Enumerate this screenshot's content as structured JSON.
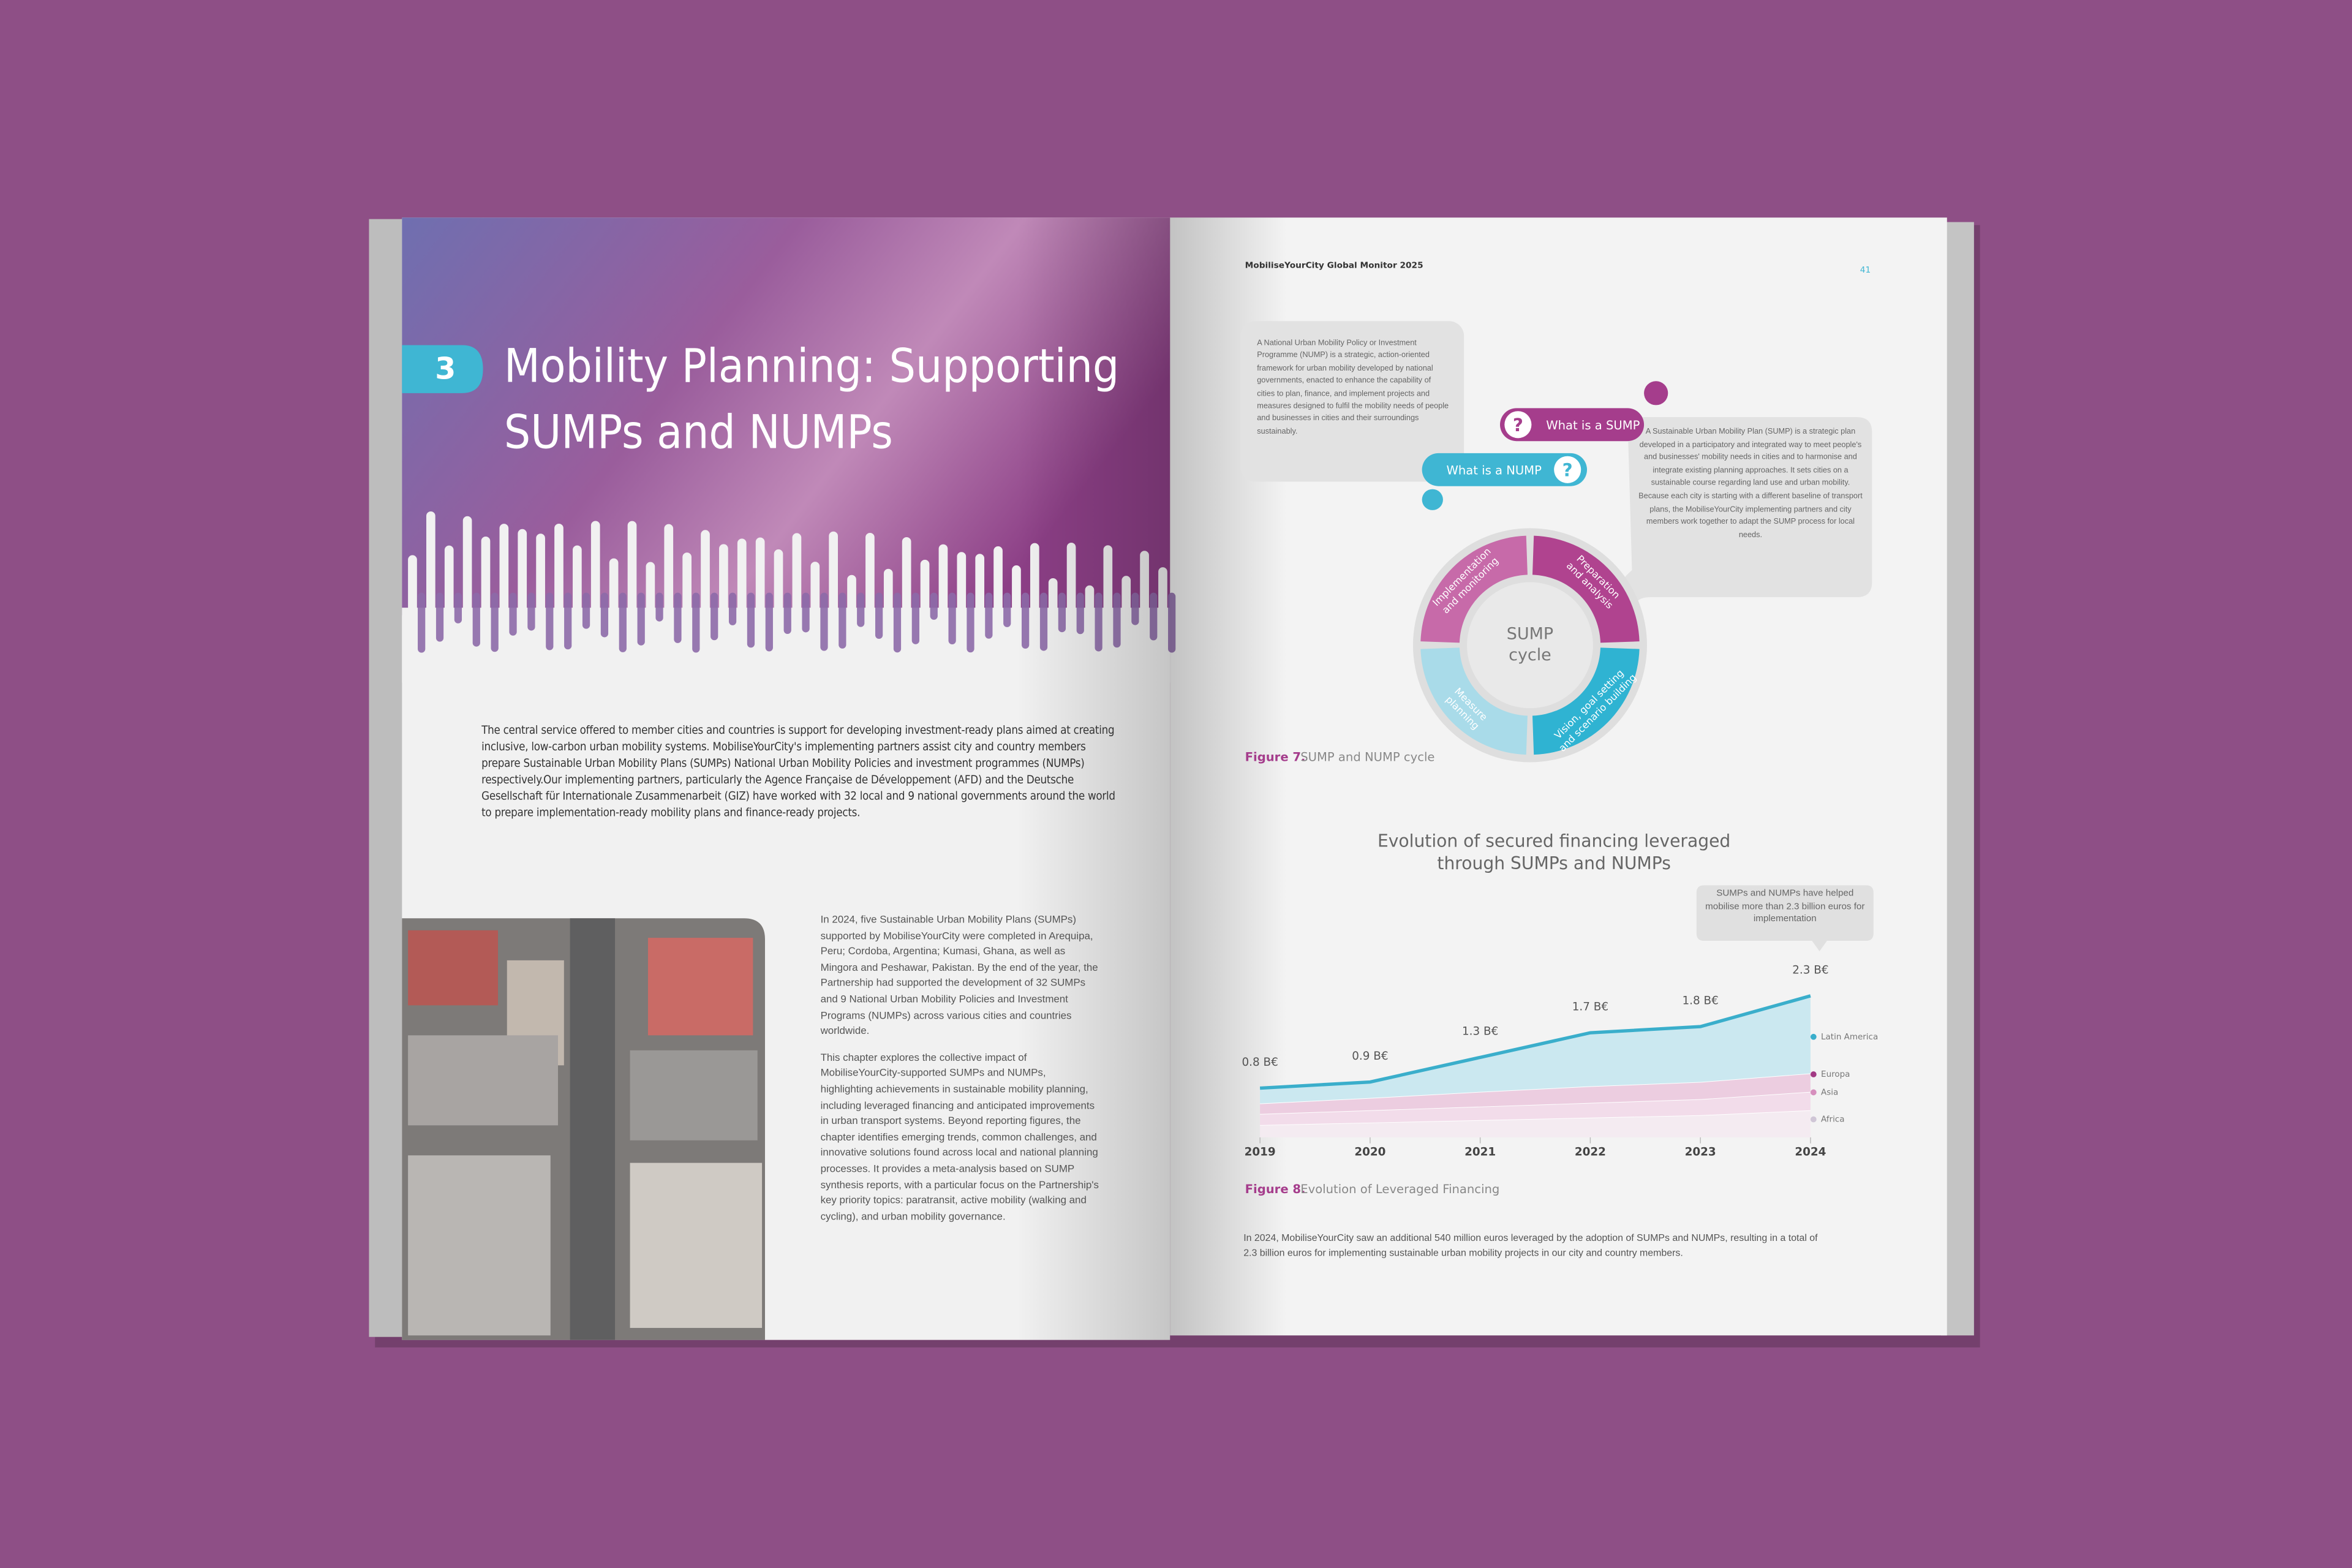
{
  "left_page": {
    "chapter_number": "3",
    "title_lines": [
      "Mobility Planning: Supporting",
      "SUMPs and NUMPs"
    ],
    "intro": "The central service offered to member cities and countries is support for developing investment-ready plans aimed at creating inclusive, low-carbon urban mobility systems. MobiliseYourCity's implementing partners assist city and country members prepare Sustainable Urban Mobility Plans (SUMPs) National Urban Mobility Policies and investment programmes (NUMPs) respectively.Our implementing partners, particularly the Agence Française de Développement (AFD) and the Deutsche Gesellschaft für Internationale Zusammenarbeit (GIZ) have worked with 32 local and 9 national governments around the world to prepare implementation-ready mobility plans and finance-ready projects.",
    "body": [
      "In 2024, five Sustainable Urban Mobility Plans (SUMPs) supported by MobiliseYourCity were completed in Arequipa, Peru; Cordoba, Argentina; Kumasi, Ghana, as well as Mingora and Peshawar, Pakistan. By the end of the year, the Partnership had supported the development of 32 SUMPs and 9 National Urban Mobility Policies and Investment Programs (NUMPs) across various cities and countries worldwide.",
      "This chapter explores the collective impact of MobiliseYourCity-supported SUMPs and NUMPs, highlighting achievements in sustainable mobility planning, including leveraged financing and anticipated improvements in urban transport systems. Beyond reporting figures, the chapter identifies emerging trends, common challenges, and innovative solutions found across local and national planning processes. It provides a meta-analysis based on SUMP synthesis reports, with a particular focus on the Partnership's key priority topics: paratransit, active mobility (walking and cycling), and urban mobility governance."
    ]
  },
  "right_page": {
    "running_header": "MobiliseYourCity Global Monitor 2025",
    "page_number": "41",
    "figure7": {
      "nump_definition": "A National Urban Mobility Policy or Investment Programme (NUMP) is a strategic, action-oriented framework for urban mobility developed by national governments, enacted to enhance the capability of cities to plan, finance, and implement projects and measures designed to fulfil the mobility needs of people and businesses in cities and their surroundings sustainably.",
      "sump_definition": "A Sustainable Urban Mobility Plan (SUMP) is a strategic plan developed in a participatory and integrated way to meet people's and businesses' mobility needs in cities and to harmonise and integrate existing planning approaches. It sets cities on a sustainable course regarding land use and urban mobility. Because each city is starting with a different baseline of transport plans, the MobiliseYourCity implementing partners and city members work together to adapt the SUMP process for local needs.",
      "sump_button": "What is a SUMP",
      "nump_button": "What is a NUMP",
      "question_mark": "?",
      "cycle_center": [
        "SUMP",
        "cycle"
      ],
      "cycle_stages": [
        [
          "Preparation",
          "and analysis"
        ],
        [
          "Vision, goal setting",
          "and scenario building"
        ],
        [
          "Measure",
          "planning"
        ],
        [
          "Implementation",
          "and monitoring"
        ]
      ],
      "caption_label": "Figure 7.",
      "caption": "SUMP and NUMP cycle"
    },
    "figure8": {
      "type": "area",
      "title_lines": [
        "Evolution of secured financing leveraged",
        "through SUMPs and NUMPs"
      ],
      "callout": "SUMPs and NUMPs have helped mobilise more than 2.3 billion euros for implementation",
      "categories": [
        "2019",
        "2020",
        "2021",
        "2022",
        "2023",
        "2024"
      ],
      "totals": [
        0.8,
        0.9,
        1.3,
        1.7,
        1.8,
        2.3
      ],
      "total_labels": [
        "0.8 B€",
        "0.9 B€",
        "1.3 B€",
        "1.7 B€",
        "1.8 B€",
        "2.3 B€"
      ],
      "series": [
        {
          "name": "Africa",
          "color": "#cfc6d6",
          "fill": "#f4ebf1",
          "values": [
            0.2,
            0.24,
            0.28,
            0.32,
            0.36,
            0.44
          ]
        },
        {
          "name": "Asia",
          "color": "#d68fbd",
          "fill": "#f2dcea",
          "values": [
            0.18,
            0.2,
            0.22,
            0.24,
            0.26,
            0.3
          ]
        },
        {
          "name": "Europa",
          "color": "#a23a84",
          "fill": "#eccde0",
          "values": [
            0.17,
            0.2,
            0.24,
            0.27,
            0.28,
            0.3
          ]
        },
        {
          "name": "Latin America",
          "color": "#3aaecb",
          "fill": "#cbe8f0",
          "values": [
            0.25,
            0.26,
            0.56,
            0.87,
            0.9,
            1.26
          ]
        }
      ],
      "caption_label": "Figure 8.",
      "caption": "Evolution of Leveraged Financing"
    },
    "closing": "In 2024, MobiliseYourCity saw an additional 540 million euros leveraged by the adoption of SUMPs and NUMPs, resulting in a total of 2.3 billion euros for implementing sustainable urban mobility projects in our city and country members."
  }
}
